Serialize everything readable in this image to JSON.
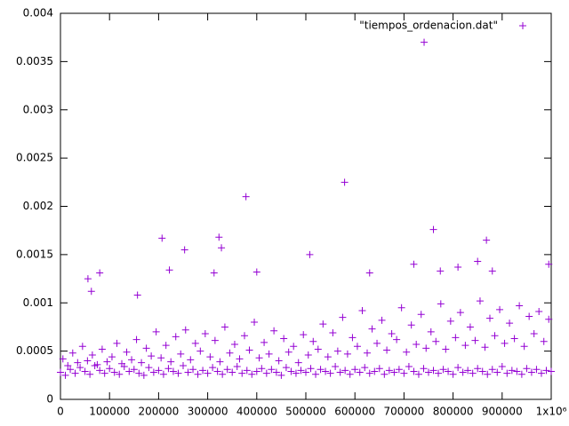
{
  "chart_data": {
    "type": "scatter",
    "xlim": [
      0,
      1000000
    ],
    "ylim": [
      0,
      0.004
    ],
    "xticks": [
      0,
      100000,
      200000,
      300000,
      400000,
      500000,
      600000,
      700000,
      800000,
      900000,
      {
        "value": 1000000,
        "label": "1x10⁶"
      }
    ],
    "yticks": [
      0,
      0.0005,
      0.001,
      0.0015,
      0.002,
      0.0025,
      0.003,
      0.0035,
      0.004
    ],
    "grid": false,
    "legend": "top-right",
    "series": [
      {
        "name": "\"tiempos_ordenacion.dat\"",
        "color": "#9400d3",
        "x": [
          0,
          10000,
          20000,
          30000,
          40000,
          50000,
          60000,
          70000,
          80000,
          90000,
          100000,
          110000,
          120000,
          130000,
          140000,
          150000,
          160000,
          170000,
          180000,
          190000,
          200000,
          210000,
          220000,
          230000,
          240000,
          250000,
          260000,
          270000,
          280000,
          290000,
          300000,
          310000,
          320000,
          330000,
          340000,
          350000,
          360000,
          370000,
          380000,
          390000,
          400000,
          410000,
          420000,
          430000,
          440000,
          450000,
          460000,
          470000,
          480000,
          490000,
          500000,
          510000,
          520000,
          530000,
          540000,
          550000,
          560000,
          570000,
          580000,
          590000,
          600000,
          610000,
          620000,
          630000,
          640000,
          650000,
          660000,
          670000,
          680000,
          690000,
          700000,
          710000,
          720000,
          730000,
          740000,
          750000,
          760000,
          770000,
          780000,
          790000,
          800000,
          810000,
          820000,
          830000,
          840000,
          850000,
          860000,
          870000,
          880000,
          890000,
          900000,
          910000,
          920000,
          930000,
          940000,
          950000,
          960000,
          970000,
          980000,
          990000,
          1000000,
          5000,
          15000,
          25000,
          35000,
          45000,
          55000,
          65000,
          75000,
          85000,
          95000,
          105000,
          115000,
          125000,
          135000,
          145000,
          155000,
          165000,
          175000,
          185000,
          195000,
          205000,
          215000,
          225000,
          235000,
          245000,
          255000,
          265000,
          275000,
          285000,
          295000,
          305000,
          315000,
          325000,
          335000,
          345000,
          355000,
          365000,
          375000,
          385000,
          395000,
          405000,
          415000,
          425000,
          435000,
          445000,
          455000,
          465000,
          475000,
          485000,
          495000,
          505000,
          515000,
          525000,
          535000,
          545000,
          555000,
          565000,
          575000,
          585000,
          595000,
          605000,
          615000,
          625000,
          635000,
          645000,
          655000,
          665000,
          675000,
          685000,
          695000,
          705000,
          715000,
          725000,
          735000,
          745000,
          755000,
          765000,
          775000,
          785000,
          795000,
          805000,
          815000,
          825000,
          835000,
          845000,
          855000,
          865000,
          875000,
          885000,
          895000,
          905000,
          915000,
          925000,
          935000,
          945000,
          955000,
          965000,
          975000,
          985000,
          995000,
          207000,
          222000,
          253000,
          323000,
          328000,
          378000,
          400000,
          508000,
          579000,
          741000,
          760000,
          868000,
          720000,
          995000,
          56000,
          80000,
          63000,
          157000,
          313000,
          630000,
          774000,
          810000,
          850000,
          880000
        ],
        "values": [
          0.00028,
          0.00025,
          0.00031,
          0.00027,
          0.00033,
          0.00029,
          0.00026,
          0.00035,
          0.0003,
          0.00027,
          0.00032,
          0.00028,
          0.00026,
          0.00034,
          0.00029,
          0.00031,
          0.00027,
          0.00025,
          0.00033,
          0.00028,
          0.0003,
          0.00026,
          0.00032,
          0.00029,
          0.00027,
          0.00035,
          0.00028,
          0.00031,
          0.00026,
          0.0003,
          0.00027,
          0.00033,
          0.00029,
          0.00026,
          0.00031,
          0.00028,
          0.00034,
          0.00027,
          0.0003,
          0.00026,
          0.00029,
          0.00032,
          0.00027,
          0.00031,
          0.00028,
          0.00025,
          0.00033,
          0.00029,
          0.00027,
          0.0003,
          0.00028,
          0.00032,
          0.00026,
          0.00031,
          0.00029,
          0.00027,
          0.00034,
          0.00028,
          0.0003,
          0.00026,
          0.00031,
          0.00028,
          0.00033,
          0.00027,
          0.00029,
          0.00032,
          0.00026,
          0.0003,
          0.00028,
          0.00031,
          0.00027,
          0.00034,
          0.00029,
          0.00026,
          0.00032,
          0.00028,
          0.0003,
          0.00027,
          0.00031,
          0.00029,
          0.00026,
          0.00033,
          0.00028,
          0.0003,
          0.00027,
          0.00032,
          0.00029,
          0.00026,
          0.00031,
          0.00028,
          0.00034,
          0.00027,
          0.0003,
          0.00029,
          0.00026,
          0.00032,
          0.00028,
          0.00031,
          0.00027,
          0.0003,
          0.00029,
          0.00042,
          0.00035,
          0.00048,
          0.00038,
          0.00055,
          0.0004,
          0.00046,
          0.00036,
          0.00052,
          0.00039,
          0.00044,
          0.00058,
          0.00037,
          0.00049,
          0.00041,
          0.00062,
          0.00038,
          0.00053,
          0.00045,
          0.0007,
          0.00043,
          0.00056,
          0.00039,
          0.00065,
          0.00047,
          0.00072,
          0.00041,
          0.00058,
          0.0005,
          0.00068,
          0.00044,
          0.00061,
          0.00039,
          0.00075,
          0.00048,
          0.00057,
          0.00042,
          0.00066,
          0.00051,
          0.0008,
          0.00043,
          0.00059,
          0.00047,
          0.00071,
          0.0004,
          0.00063,
          0.00049,
          0.00055,
          0.00038,
          0.00067,
          0.00046,
          0.0006,
          0.00052,
          0.00078,
          0.00044,
          0.00069,
          0.0005,
          0.00085,
          0.00047,
          0.00064,
          0.00055,
          0.00092,
          0.00048,
          0.00073,
          0.00058,
          0.00082,
          0.00051,
          0.00068,
          0.00062,
          0.00095,
          0.00049,
          0.00077,
          0.00057,
          0.00088,
          0.00053,
          0.0007,
          0.0006,
          0.00099,
          0.00052,
          0.00081,
          0.00064,
          0.0009,
          0.00056,
          0.00075,
          0.00061,
          0.00102,
          0.00054,
          0.00084,
          0.00066,
          0.00093,
          0.00058,
          0.00079,
          0.00063,
          0.00097,
          0.00055,
          0.00086,
          0.00068,
          0.00091,
          0.0006,
          0.00083,
          0.00167,
          0.00134,
          0.00155,
          0.00168,
          0.00157,
          0.0021,
          0.00132,
          0.0015,
          0.00225,
          0.0037,
          0.00176,
          0.00165,
          0.0014,
          0.0014,
          0.00125,
          0.00131,
          0.00112,
          0.00108,
          0.00131,
          0.00131,
          0.00133,
          0.00137,
          0.00143,
          0.00133
        ]
      }
    ]
  }
}
